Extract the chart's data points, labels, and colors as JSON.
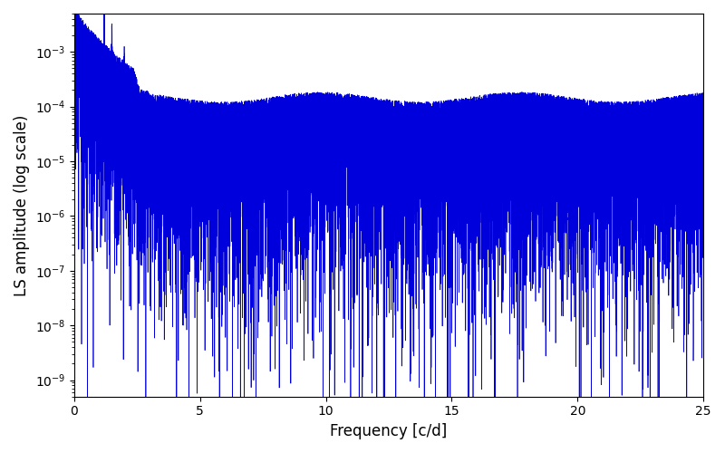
{
  "title": "",
  "xlabel": "Frequency [c/d]",
  "ylabel": "LS amplitude (log scale)",
  "xmin": 0,
  "xmax": 25,
  "ymin": 5e-10,
  "ymax": 0.005,
  "line_color": "#0000dd",
  "line_width": 0.5,
  "background_color": "#ffffff",
  "seed": 12345,
  "n_points": 25000,
  "figsize": [
    8.0,
    5.0
  ],
  "dpi": 100
}
